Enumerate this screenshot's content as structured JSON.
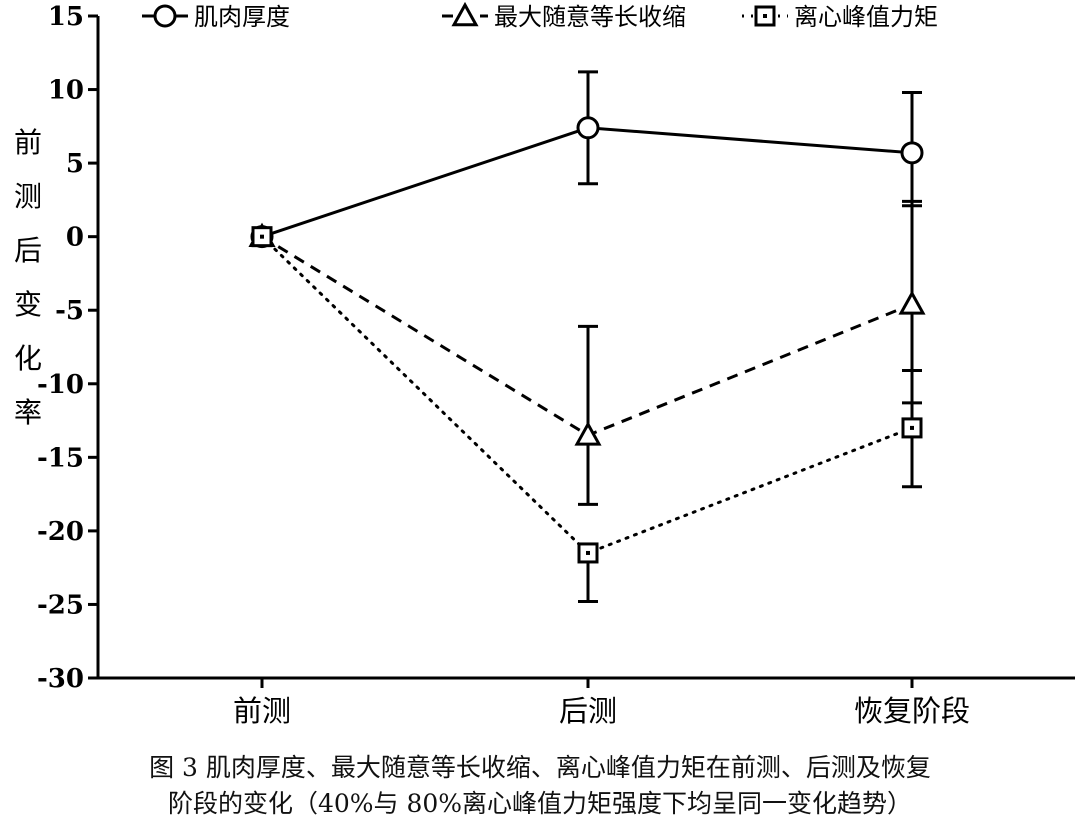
{
  "chart_data": {
    "type": "line",
    "categories": [
      "前测",
      "后测",
      "恢复阶段"
    ],
    "ylabel": "前测后变化率",
    "ylim": [
      -30,
      15
    ],
    "yticks": [
      15,
      10,
      5,
      0,
      -5,
      -10,
      -15,
      -20,
      -25,
      -30
    ],
    "legend_position": "top",
    "grid": false,
    "series": [
      {
        "name": "肌肉厚度",
        "style": "solid",
        "marker": "circle",
        "values": [
          0,
          7.4,
          5.7
        ],
        "err_low": [
          0,
          3.6,
          2.1
        ],
        "err_high": [
          0,
          11.2,
          9.8
        ]
      },
      {
        "name": "最大随意等长收缩",
        "style": "dashed",
        "marker": "triangle",
        "values": [
          0,
          -13.5,
          -4.6
        ],
        "err_low": [
          0,
          -18.2,
          -11.3
        ],
        "err_high": [
          0,
          -6.1,
          2.4
        ]
      },
      {
        "name": "离心峰值力矩",
        "style": "dotted",
        "marker": "square",
        "values": [
          0,
          -21.5,
          -13.0
        ],
        "err_low": [
          0,
          -24.8,
          -17.0
        ],
        "err_high": [
          0,
          -21.5,
          -9.1
        ]
      }
    ]
  },
  "caption": {
    "line1": "图 3  肌肉厚度、最大随意等长收缩、离心峰值力矩在前测、后测及恢复",
    "line2": "阶段的变化（40%与 80%离心峰值力矩强度下均呈同一变化趋势）"
  }
}
